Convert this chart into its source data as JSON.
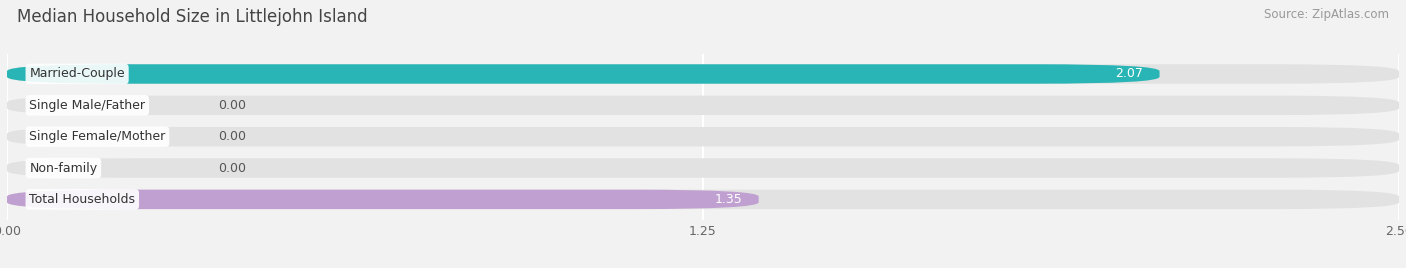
{
  "title": "Median Household Size in Littlejohn Island",
  "source": "Source: ZipAtlas.com",
  "categories": [
    "Married-Couple",
    "Single Male/Father",
    "Single Female/Mother",
    "Non-family",
    "Total Households"
  ],
  "values": [
    2.07,
    0.0,
    0.0,
    0.0,
    1.35
  ],
  "bar_colors": [
    "#29b5b5",
    "#a8b8e8",
    "#f0a0b0",
    "#f5c890",
    "#c0a0d0"
  ],
  "background_color": "#f2f2f2",
  "bar_bg_color": "#e2e2e2",
  "xlim": [
    0,
    2.5
  ],
  "xticks": [
    0.0,
    1.25,
    2.5
  ],
  "title_fontsize": 12,
  "source_fontsize": 8.5,
  "label_fontsize": 9,
  "value_fontsize": 9
}
